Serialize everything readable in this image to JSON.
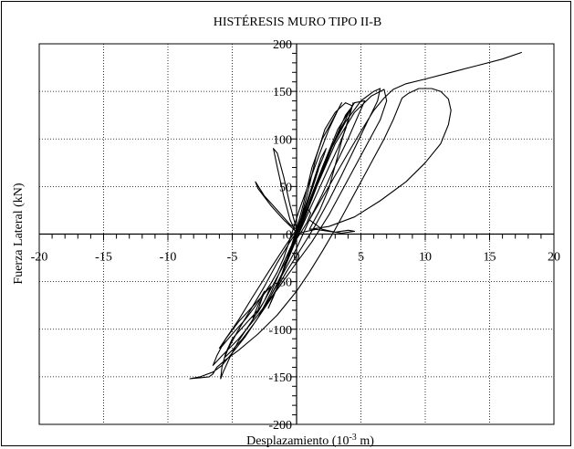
{
  "chart_data": {
    "type": "line",
    "title": "HISTÉRESIS MURO TIPO II-B",
    "xlabel": "Desplazamiento (10",
    "xlabel_sup": "-3",
    "xlabel_unit": " m)",
    "ylabel": "Fuerza Lateral (kN)",
    "xlim": [
      -20,
      20
    ],
    "ylim": [
      -200,
      200
    ],
    "x_ticks": [
      -20,
      -15,
      -10,
      -5,
      0,
      5,
      10,
      15,
      20
    ],
    "x_tick_labels": [
      "-20",
      "-15",
      "-10",
      "-5",
      "0",
      "5",
      "10",
      "15",
      "20"
    ],
    "y_ticks": [
      -200,
      -150,
      -100,
      -50,
      0,
      50,
      100,
      150,
      200
    ],
    "y_tick_labels": [
      "-200",
      "-150",
      "-100",
      "-50",
      "0",
      "50",
      "100",
      "150",
      "200"
    ],
    "grid": true,
    "line_color": "#000000",
    "series": [
      {
        "values": [
          [
            0,
            0
          ],
          [
            0.3,
            8
          ],
          [
            0.6,
            18
          ],
          [
            0.9,
            26
          ],
          [
            1.1,
            22
          ],
          [
            0.8,
            12
          ],
          [
            0.4,
            3
          ],
          [
            0,
            -5
          ],
          [
            -0.3,
            -14
          ],
          [
            -0.6,
            -22
          ],
          [
            -0.8,
            -28
          ],
          [
            -0.5,
            -20
          ],
          [
            -0.2,
            -10
          ],
          [
            0,
            0
          ],
          [
            0.4,
            15
          ],
          [
            0.9,
            35
          ],
          [
            1.4,
            55
          ],
          [
            1.7,
            68
          ],
          [
            1.5,
            60
          ],
          [
            1.0,
            42
          ],
          [
            0.5,
            22
          ],
          [
            0,
            5
          ],
          [
            -0.4,
            -12
          ],
          [
            -0.9,
            -32
          ],
          [
            -1.3,
            -48
          ],
          [
            -1.5,
            -55
          ],
          [
            -1.1,
            -42
          ],
          [
            -0.6,
            -22
          ],
          [
            0,
            -2
          ],
          [
            0.6,
            25
          ],
          [
            1.3,
            55
          ],
          [
            1.9,
            80
          ],
          [
            2.3,
            90
          ],
          [
            2.1,
            82
          ],
          [
            1.5,
            62
          ],
          [
            0.9,
            38
          ],
          [
            0.2,
            10
          ],
          [
            -0.5,
            -18
          ],
          [
            -1.2,
            -45
          ],
          [
            -1.8,
            -65
          ],
          [
            -2.2,
            -78
          ],
          [
            -1.8,
            -66
          ],
          [
            -1.2,
            -45
          ],
          [
            -0.5,
            -18
          ],
          [
            0.2,
            5
          ],
          [
            1.0,
            35
          ],
          [
            2.0,
            70
          ],
          [
            3.0,
            100
          ],
          [
            3.8,
            120
          ],
          [
            4.2,
            132
          ],
          [
            3.8,
            125
          ],
          [
            3.0,
            100
          ],
          [
            2.0,
            65
          ],
          [
            1.0,
            30
          ],
          [
            0,
            -5
          ],
          [
            -1.0,
            -38
          ],
          [
            -2.0,
            -65
          ],
          [
            -3.0,
            -88
          ],
          [
            -3.5,
            -98
          ],
          [
            -3.0,
            -88
          ],
          [
            -2.0,
            -62
          ],
          [
            -1.0,
            -30
          ],
          [
            0,
            0
          ],
          [
            1.2,
            40
          ],
          [
            2.5,
            85
          ],
          [
            3.8,
            118
          ],
          [
            5.0,
            140
          ],
          [
            6.0,
            150
          ],
          [
            6.5,
            153
          ],
          [
            6.3,
            140
          ],
          [
            5.5,
            118
          ],
          [
            4.5,
            90
          ],
          [
            3.5,
            62
          ],
          [
            2.5,
            35
          ],
          [
            1.5,
            10
          ],
          [
            0.5,
            -12
          ],
          [
            -0.8,
            -40
          ],
          [
            -2.0,
            -68
          ],
          [
            -3.2,
            -92
          ],
          [
            -4.2,
            -110
          ],
          [
            -5.0,
            -122
          ],
          [
            -5.6,
            -130
          ],
          [
            -5.3,
            -120
          ],
          [
            -4.5,
            -100
          ],
          [
            -3.5,
            -78
          ],
          [
            -2.5,
            -55
          ],
          [
            -1.5,
            -30
          ],
          [
            -0.5,
            -8
          ],
          [
            0.5,
            12
          ],
          [
            1.5,
            48
          ],
          [
            3.0,
            95
          ],
          [
            4.5,
            128
          ],
          [
            5.8,
            145
          ],
          [
            6.8,
            152
          ],
          [
            7.0,
            140
          ],
          [
            6.5,
            120
          ],
          [
            5.5,
            95
          ],
          [
            4.5,
            70
          ],
          [
            3.5,
            45
          ],
          [
            2.5,
            20
          ],
          [
            1.2,
            -8
          ],
          [
            0,
            -30
          ],
          [
            -1.5,
            -58
          ],
          [
            -3.0,
            -85
          ],
          [
            -4.5,
            -110
          ],
          [
            -5.8,
            -128
          ],
          [
            -6.5,
            -138
          ],
          [
            -6.2,
            -128
          ],
          [
            -5.5,
            -110
          ],
          [
            -4.5,
            -90
          ],
          [
            -3.5,
            -68
          ],
          [
            -2.2,
            -40
          ],
          [
            -1.0,
            -15
          ],
          [
            0,
            5
          ],
          [
            -0.5,
            10
          ],
          [
            -1.5,
            25
          ],
          [
            -2.5,
            40
          ],
          [
            -3.2,
            55
          ],
          [
            -3.0,
            48
          ],
          [
            -2.0,
            30
          ],
          [
            -1.0,
            15
          ],
          [
            0,
            2
          ],
          [
            1.0,
            30
          ],
          [
            2.0,
            70
          ],
          [
            3.2,
            110
          ],
          [
            4.5,
            138
          ],
          [
            5.3,
            140
          ],
          [
            4.8,
            125
          ],
          [
            4.0,
            100
          ],
          [
            3.0,
            72
          ],
          [
            2.0,
            42
          ],
          [
            1.0,
            15
          ],
          [
            2.0,
            5
          ],
          [
            3.0,
            2
          ],
          [
            4.0,
            4
          ],
          [
            4.5,
            3
          ],
          [
            3.5,
            1
          ],
          [
            2.5,
            3
          ],
          [
            1.5,
            5
          ],
          [
            0.5,
            2
          ],
          [
            0,
            0
          ],
          [
            0.8,
            40
          ],
          [
            1.5,
            80
          ],
          [
            2.2,
            110
          ],
          [
            3.0,
            128
          ],
          [
            3.8,
            138
          ],
          [
            4.3,
            135
          ],
          [
            4.0,
            120
          ],
          [
            3.5,
            98
          ],
          [
            3.0,
            72
          ],
          [
            2.5,
            48
          ],
          [
            1.8,
            25
          ],
          [
            1.0,
            5
          ],
          [
            2.5,
            8
          ],
          [
            4.5,
            18
          ],
          [
            6.5,
            35
          ],
          [
            8.5,
            55
          ],
          [
            10.0,
            75
          ],
          [
            11.2,
            95
          ],
          [
            11.8,
            115
          ],
          [
            12.0,
            130
          ],
          [
            11.8,
            142
          ],
          [
            11.2,
            150
          ],
          [
            10.5,
            153
          ],
          [
            9.5,
            153
          ],
          [
            8.7,
            148
          ],
          [
            8.2,
            143
          ],
          [
            7.5,
            120
          ],
          [
            6.8,
            100
          ],
          [
            6.0,
            80
          ],
          [
            5.0,
            55
          ],
          [
            4.0,
            30
          ],
          [
            3.0,
            5
          ],
          [
            2.0,
            -18
          ],
          [
            1.0,
            -40
          ],
          [
            0,
            -60
          ],
          [
            -1.5,
            -85
          ],
          [
            -3.0,
            -105
          ],
          [
            -4.5,
            -122
          ],
          [
            -5.5,
            -132
          ],
          [
            -6.2,
            -140
          ],
          [
            -6.5,
            -147
          ],
          [
            -6.8,
            -150
          ],
          [
            -7.5,
            -151
          ],
          [
            -8.3,
            -152
          ],
          [
            -7.5,
            -150
          ],
          [
            -6.5,
            -145
          ],
          [
            -5.8,
            -138
          ],
          [
            -5.0,
            -125
          ],
          [
            -4.0,
            -108
          ],
          [
            -3.0,
            -88
          ],
          [
            -2.0,
            -65
          ],
          [
            -1.0,
            -40
          ],
          [
            0,
            -15
          ],
          [
            1.0,
            15
          ],
          [
            2.5,
            50
          ],
          [
            4.0,
            85
          ],
          [
            5.0,
            108
          ],
          [
            6.0,
            130
          ],
          [
            6.8,
            143
          ],
          [
            7.5,
            152
          ],
          [
            8.5,
            158
          ],
          [
            10.0,
            163
          ],
          [
            12.0,
            170
          ],
          [
            14.0,
            177
          ],
          [
            16.0,
            184
          ],
          [
            17.5,
            191
          ]
        ]
      },
      {
        "values": [
          [
            0,
            0
          ],
          [
            -0.5,
            15
          ],
          [
            -1.0,
            40
          ],
          [
            -1.5,
            70
          ],
          [
            -1.8,
            90
          ],
          [
            -1.5,
            85
          ],
          [
            -1.0,
            60
          ],
          [
            -0.5,
            30
          ],
          [
            0,
            5
          ],
          [
            0.5,
            30
          ],
          [
            1.2,
            70
          ],
          [
            2.0,
            100
          ],
          [
            2.8,
            120
          ],
          [
            3.5,
            138
          ],
          [
            3.2,
            130
          ],
          [
            2.5,
            110
          ],
          [
            1.8,
            85
          ],
          [
            1.0,
            55
          ],
          [
            0.2,
            25
          ],
          [
            -0.5,
            -5
          ],
          [
            -1.0,
            -25
          ],
          [
            -1.5,
            -40
          ],
          [
            -2.0,
            -52
          ],
          [
            -2.5,
            -62
          ],
          [
            -3.0,
            -75
          ],
          [
            -3.4,
            -88
          ],
          [
            -3.0,
            -82
          ],
          [
            -2.5,
            -70
          ],
          [
            -2.0,
            -55
          ],
          [
            -3.0,
            -70
          ],
          [
            -4.5,
            -92
          ],
          [
            -5.5,
            -110
          ],
          [
            -6.0,
            -120
          ],
          [
            -5.8,
            -118
          ],
          [
            -5.0,
            -105
          ],
          [
            -4.0,
            -90
          ],
          [
            -3.0,
            -72
          ],
          [
            -2.5,
            -60
          ],
          [
            -3.0,
            -80
          ],
          [
            -4.0,
            -95
          ],
          [
            -5.0,
            -110
          ],
          [
            -5.5,
            -125
          ],
          [
            -5.8,
            -140
          ],
          [
            -5.9,
            -152
          ],
          [
            -5.7,
            -145
          ],
          [
            -5.2,
            -130
          ],
          [
            -4.5,
            -112
          ],
          [
            -3.5,
            -92
          ],
          [
            -2.5,
            -70
          ],
          [
            -1.5,
            -45
          ],
          [
            -0.5,
            -20
          ],
          [
            0.5,
            10
          ],
          [
            1.5,
            40
          ],
          [
            2.5,
            70
          ],
          [
            3.2,
            90
          ],
          [
            3.8,
            110
          ],
          [
            4.2,
            128
          ],
          [
            4.4,
            138
          ],
          [
            4.2,
            128
          ]
        ]
      }
    ]
  }
}
